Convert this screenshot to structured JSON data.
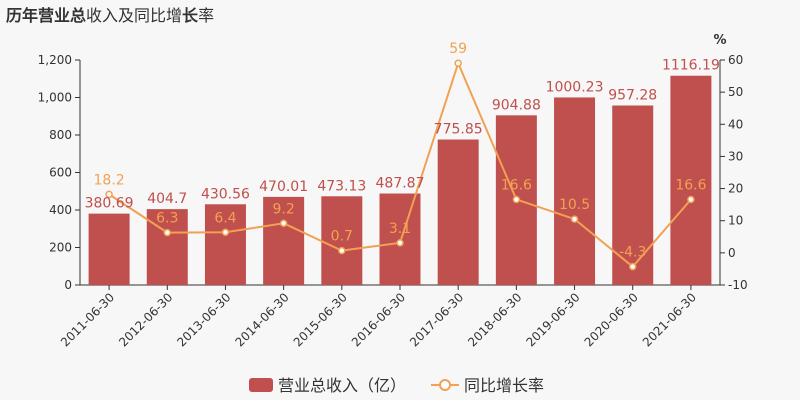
{
  "title": {
    "part1": "历年",
    "part2": "营业总",
    "part3": "收入及同比增",
    "part4": "长",
    "part5": "率"
  },
  "colors": {
    "bar": "#c0504d",
    "line": "#f2a154",
    "axis": "#333333",
    "background": "#f7f7f7"
  },
  "chart_data": {
    "type": "bar",
    "categories": [
      "2011-06-30",
      "2012-06-30",
      "2013-06-30",
      "2014-06-30",
      "2015-06-30",
      "2016-06-30",
      "2017-06-30",
      "2018-06-30",
      "2019-06-30",
      "2020-06-30",
      "2021-06-30"
    ],
    "series": [
      {
        "name": "营业总收入（亿）",
        "type": "bar",
        "axis": "left",
        "values": [
          380.69,
          404.7,
          430.56,
          470.01,
          473.13,
          487.87,
          775.85,
          904.88,
          1000.23,
          957.28,
          1116.19
        ],
        "labels": [
          "380.69",
          "404.7",
          "430.56",
          "470.01",
          "473.13",
          "487.87",
          "775.85",
          "904.88",
          "1000.23",
          "957.28",
          "1116.19"
        ]
      },
      {
        "name": "同比增长率",
        "type": "line",
        "axis": "right",
        "values": [
          18.2,
          6.3,
          6.4,
          9.2,
          0.7,
          3.1,
          59,
          16.6,
          10.5,
          -4.3,
          16.6
        ],
        "labels": [
          "18.2",
          "6.3",
          "6.4",
          "9.2",
          "0.7",
          "3.1",
          "59",
          "16.6",
          "10.5",
          "-4.3",
          "16.6"
        ]
      }
    ],
    "y_left": {
      "min": 0,
      "max": 1200,
      "ticks": [
        0,
        200,
        400,
        600,
        800,
        1000,
        1200
      ],
      "tick_labels": [
        "0",
        "200",
        "400",
        "600",
        "800",
        "1,000",
        "1,200"
      ]
    },
    "y_right": {
      "min": -10,
      "max": 60,
      "ticks": [
        -10,
        0,
        10,
        20,
        30,
        40,
        50,
        60
      ],
      "tick_labels": [
        "-10",
        "0",
        "10",
        "20",
        "30",
        "40",
        "50",
        "60"
      ],
      "unit": "%"
    },
    "legend": {
      "position": "bottom",
      "bar_label": "营业总收入（亿）",
      "line_label": "同比增长率"
    },
    "grid": false
  }
}
